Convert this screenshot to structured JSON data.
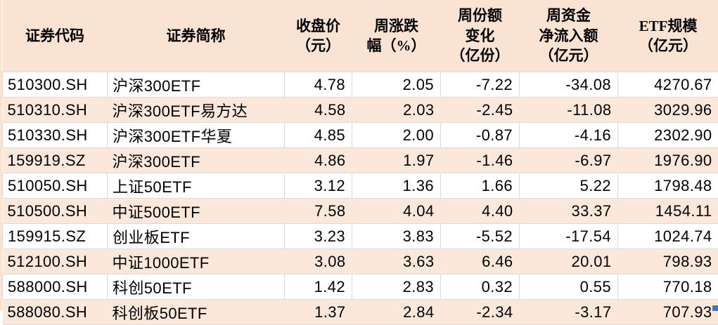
{
  "colors": {
    "header_bg": "#fae3d3",
    "stripe_bg": "#fce8db",
    "grid": "#d9d9d9",
    "hgrid": "#dcdcdc",
    "text": "#000000",
    "fill_handle": "#4472c4"
  },
  "chart_data": {
    "type": "table",
    "title": "",
    "grid": "light horizontal lines; vertical lines on white rows only",
    "stripe_pattern": "rows alternate white / light peach starting with white",
    "columns": [
      {
        "key": "code",
        "label": "证券代码",
        "align": "left"
      },
      {
        "key": "name",
        "label": "证券简称",
        "align": "left"
      },
      {
        "key": "close_price",
        "label": "收盘价\n（元）",
        "align": "right"
      },
      {
        "key": "weekly_change_pct",
        "label": "周涨跌\n幅（%）",
        "align": "right"
      },
      {
        "key": "share_change",
        "label": "周份额\n变化\n（亿份）",
        "align": "right"
      },
      {
        "key": "net_inflow",
        "label": "周资金\n净流入额\n（亿元）",
        "align": "right"
      },
      {
        "key": "etf_scale",
        "label": "ETF规模\n（亿元）",
        "align": "right"
      }
    ],
    "rows": [
      [
        "510300.SH",
        "沪深300ETF",
        "4.78",
        "2.05",
        "-7.22",
        "-34.08",
        "4270.67"
      ],
      [
        "510310.SH",
        "沪深300ETF易方达",
        "4.58",
        "2.03",
        "-2.45",
        "-11.08",
        "3029.96"
      ],
      [
        "510330.SH",
        "沪深300ETF华夏",
        "4.85",
        "2.00",
        "-0.87",
        "-4.16",
        "2302.90"
      ],
      [
        "159919.SZ",
        "沪深300ETF",
        "4.86",
        "1.97",
        "-1.46",
        "-6.97",
        "1976.90"
      ],
      [
        "510050.SH",
        "上证50ETF",
        "3.12",
        "1.36",
        "1.66",
        "5.22",
        "1798.48"
      ],
      [
        "510500.SH",
        "中证500ETF",
        "7.58",
        "4.04",
        "4.40",
        "33.37",
        "1454.11"
      ],
      [
        "159915.SZ",
        "创业板ETF",
        "3.23",
        "3.83",
        "-5.52",
        "-17.54",
        "1024.74"
      ],
      [
        "512100.SH",
        "中证1000ETF",
        "3.08",
        "3.63",
        "6.46",
        "20.01",
        "798.93"
      ],
      [
        "588000.SH",
        "科创50ETF",
        "1.42",
        "2.83",
        "0.32",
        "0.55",
        "770.18"
      ],
      [
        "588080.SH",
        "科创板50ETF",
        "1.37",
        "2.84",
        "-2.34",
        "-3.17",
        "707.93"
      ]
    ]
  }
}
